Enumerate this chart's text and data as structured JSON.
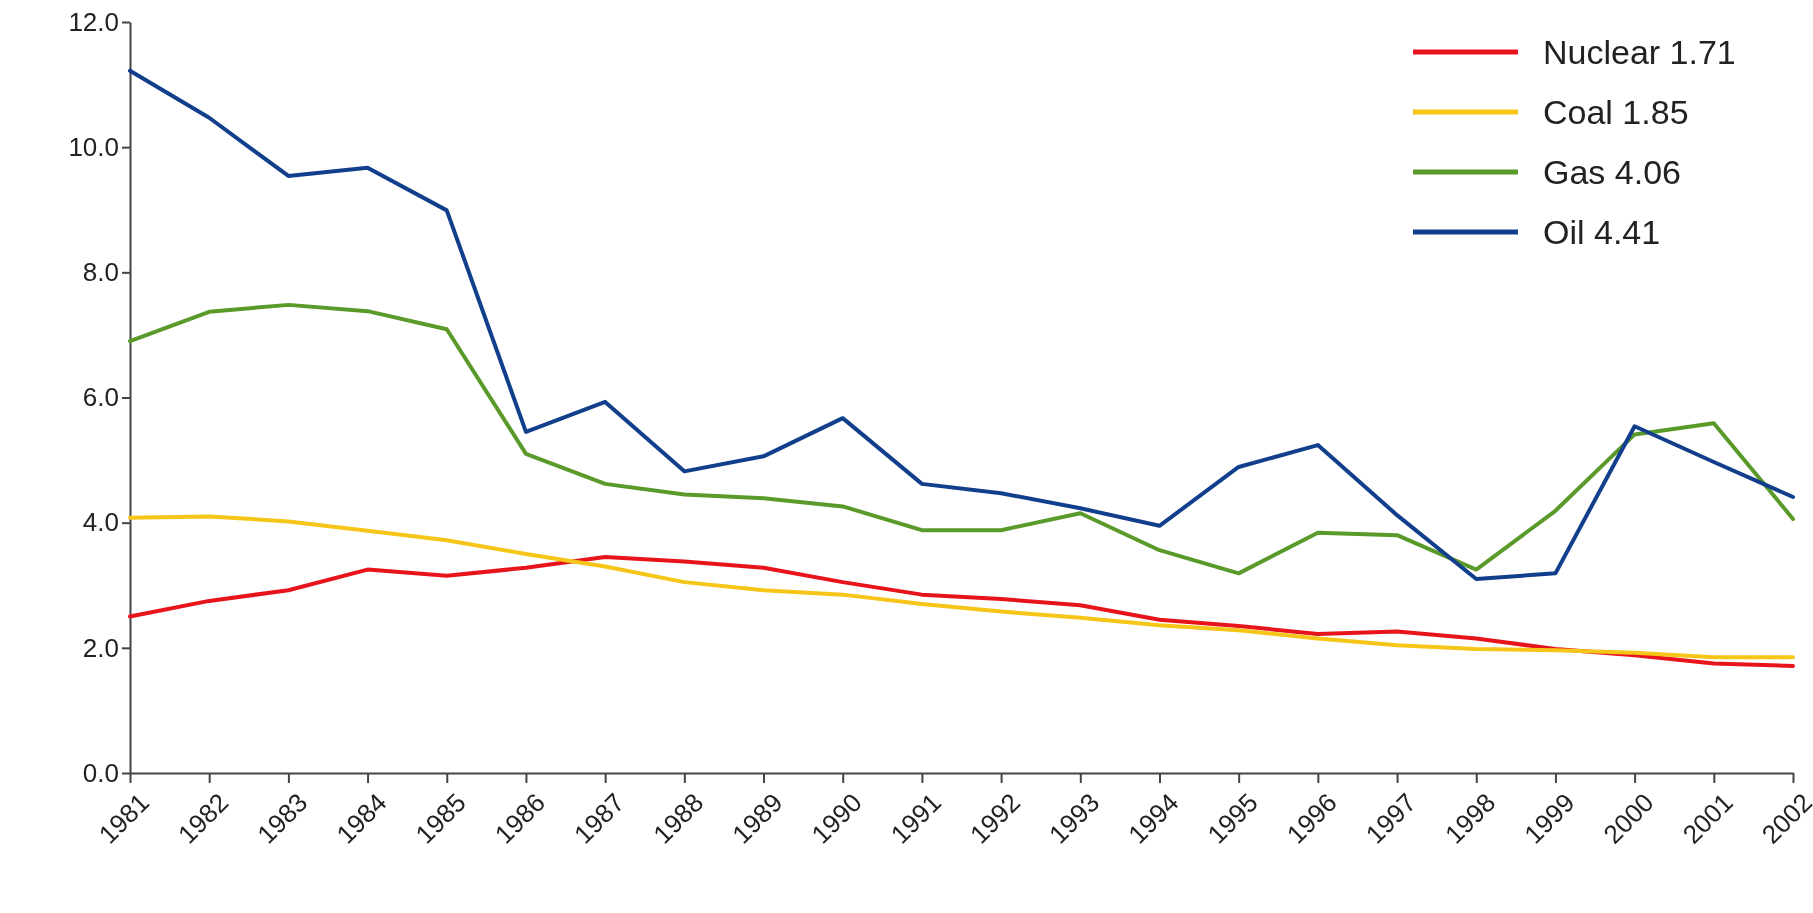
{
  "chart_data": {
    "type": "line",
    "categories": [
      "1981",
      "1982",
      "1983",
      "1984",
      "1985",
      "1986",
      "1987",
      "1988",
      "1989",
      "1990",
      "1991",
      "1992",
      "1993",
      "1994",
      "1995",
      "1996",
      "1997",
      "1998",
      "1999",
      "2000",
      "2001",
      "2002"
    ],
    "series": [
      {
        "name": "Nuclear 1.71",
        "color": "#e8141b",
        "values": [
          2.5,
          2.75,
          2.92,
          3.25,
          3.15,
          3.28,
          3.45,
          3.38,
          3.28,
          3.05,
          2.85,
          2.78,
          2.68,
          2.45,
          2.35,
          2.22,
          2.26,
          2.15,
          1.98,
          1.88,
          1.75,
          1.71
        ]
      },
      {
        "name": "Coal 1.85",
        "color": "#f5c518",
        "values": [
          4.08,
          4.1,
          4.02,
          3.87,
          3.72,
          3.5,
          3.3,
          3.05,
          2.92,
          2.85,
          2.7,
          2.58,
          2.48,
          2.36,
          2.28,
          2.15,
          2.04,
          1.98,
          1.96,
          1.92,
          1.85,
          1.85
        ]
      },
      {
        "name": "Gas 4.06",
        "color": "#5a9a2a",
        "values": [
          6.9,
          7.37,
          7.48,
          7.38,
          7.09,
          5.1,
          4.62,
          4.45,
          4.39,
          4.26,
          3.88,
          3.88,
          4.15,
          3.56,
          3.19,
          3.84,
          3.8,
          3.25,
          4.19,
          5.41,
          5.59,
          4.06
        ]
      },
      {
        "name": "Oil 4.41",
        "color": "#123f8c",
        "values": [
          11.22,
          10.47,
          9.54,
          9.67,
          8.99,
          5.45,
          5.93,
          4.82,
          5.06,
          5.67,
          4.62,
          4.47,
          4.23,
          3.95,
          4.89,
          5.24,
          4.12,
          3.1,
          3.19,
          5.54,
          4.97,
          4.41
        ]
      }
    ],
    "ylim": [
      0,
      12
    ],
    "yticks": [
      {
        "value": 0,
        "label": "0.0"
      },
      {
        "value": 2,
        "label": "2.0"
      },
      {
        "value": 4,
        "label": "4.0"
      },
      {
        "value": 6,
        "label": "6.0"
      },
      {
        "value": 8,
        "label": "8.0"
      },
      {
        "value": 10,
        "label": "10.0"
      },
      {
        "value": 12,
        "label": "12.0"
      }
    ],
    "legend": "top right",
    "marker": "none",
    "line_style": "solid"
  }
}
